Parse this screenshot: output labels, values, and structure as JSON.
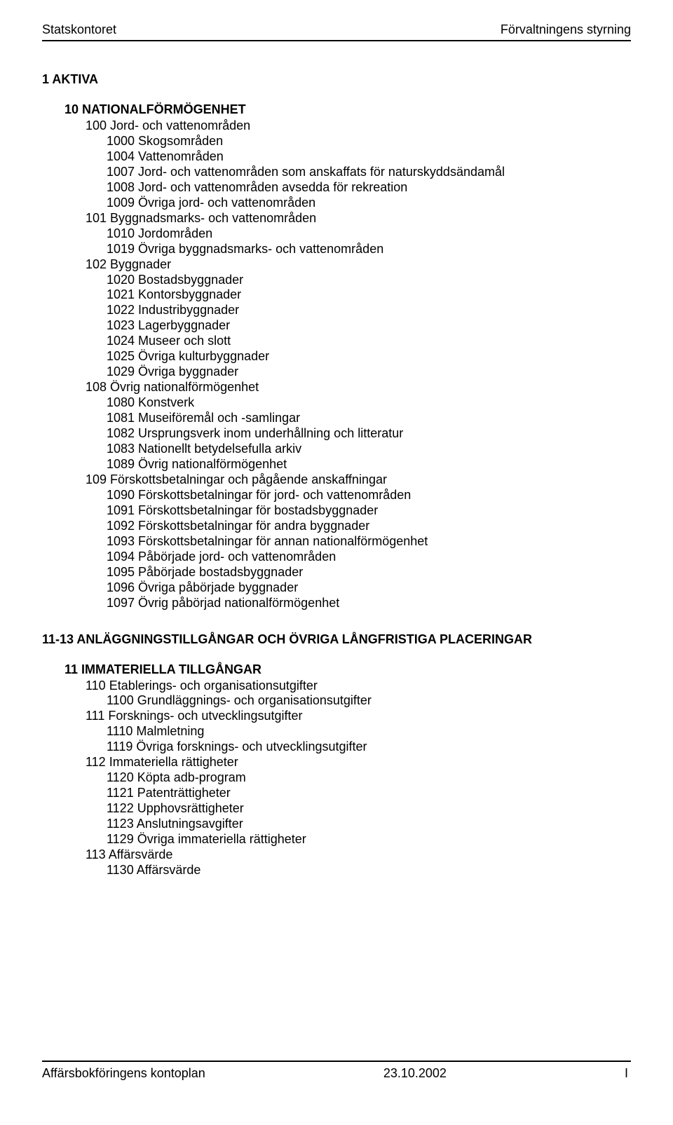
{
  "header": {
    "left": "Statskontoret",
    "right": "Förvaltningens styrning"
  },
  "sections": [
    {
      "title": "1 AKTIVA",
      "groups": [
        {
          "title": "10 NATIONALFÖRMÖGENHET",
          "subgroups": [
            {
              "label": "100 Jord- och vattenområden",
              "items": [
                "1000 Skogsområden",
                "1004 Vattenområden",
                "1007 Jord- och vattenområden som anskaffats för naturskyddsändamål",
                "1008 Jord- och vattenområden avsedda för rekreation",
                "1009 Övriga jord- och vattenområden"
              ]
            },
            {
              "label": "101 Byggnadsmarks- och vattenområden",
              "items": [
                "1010 Jordområden",
                "1019 Övriga byggnadsmarks- och vattenområden"
              ]
            },
            {
              "label": "102 Byggnader",
              "items": [
                "1020 Bostadsbyggnader",
                "1021 Kontorsbyggnader",
                "1022 Industribyggnader",
                "1023 Lagerbyggnader",
                "1024 Museer och slott",
                "1025 Övriga kulturbyggnader",
                "1029 Övriga byggnader"
              ]
            },
            {
              "label": "108 Övrig nationalförmögenhet",
              "items": [
                "1080 Konstverk",
                "1081 Museiföremål och -samlingar",
                "1082 Ursprungsverk inom underhållning och litteratur",
                "1083 Nationellt betydelsefulla arkiv",
                "1089 Övrig nationalförmögenhet"
              ]
            },
            {
              "label": "109 Förskottsbetalningar och pågående anskaffningar",
              "items": [
                "1090 Förskottsbetalningar för jord- och vattenområden",
                "1091 Förskottsbetalningar för bostadsbyggnader",
                "1092 Förskottsbetalningar för andra byggnader",
                "1093 Förskottsbetalningar för annan nationalförmögenhet",
                "1094 Påbörjade jord- och vattenområden",
                "1095 Påbörjade bostadsbyggnader",
                "1096 Övriga påbörjade byggnader",
                "1097 Övrig påbörjad nationalförmögenhet"
              ]
            }
          ]
        }
      ]
    },
    {
      "title": "11-13 ANLÄGGNINGSTILLGÅNGAR OCH ÖVRIGA LÅNGFRISTIGA PLACERINGAR",
      "groups": [
        {
          "title": "11 IMMATERIELLA TILLGÅNGAR",
          "subgroups": [
            {
              "label": "110 Etablerings- och organisationsutgifter",
              "items": [
                "1100 Grundläggnings- och organisationsutgifter"
              ]
            },
            {
              "label": "111 Forsknings- och utvecklingsutgifter",
              "items": [
                "1110 Malmletning",
                "1119 Övriga forsknings- och utvecklingsutgifter"
              ]
            },
            {
              "label": "112 Immateriella rättigheter",
              "items": [
                "1120 Köpta adb-program",
                "1121 Patenträttigheter",
                "1122 Upphovsrättigheter",
                "1123 Anslutningsavgifter",
                "1129 Övriga immateriella rättigheter"
              ]
            },
            {
              "label": "113 Affärsvärde",
              "items": [
                "1130 Affärsvärde"
              ]
            }
          ]
        }
      ]
    }
  ],
  "footer": {
    "left": "Affärsbokföringens kontoplan",
    "center": "23.10.2002",
    "right": "I"
  }
}
